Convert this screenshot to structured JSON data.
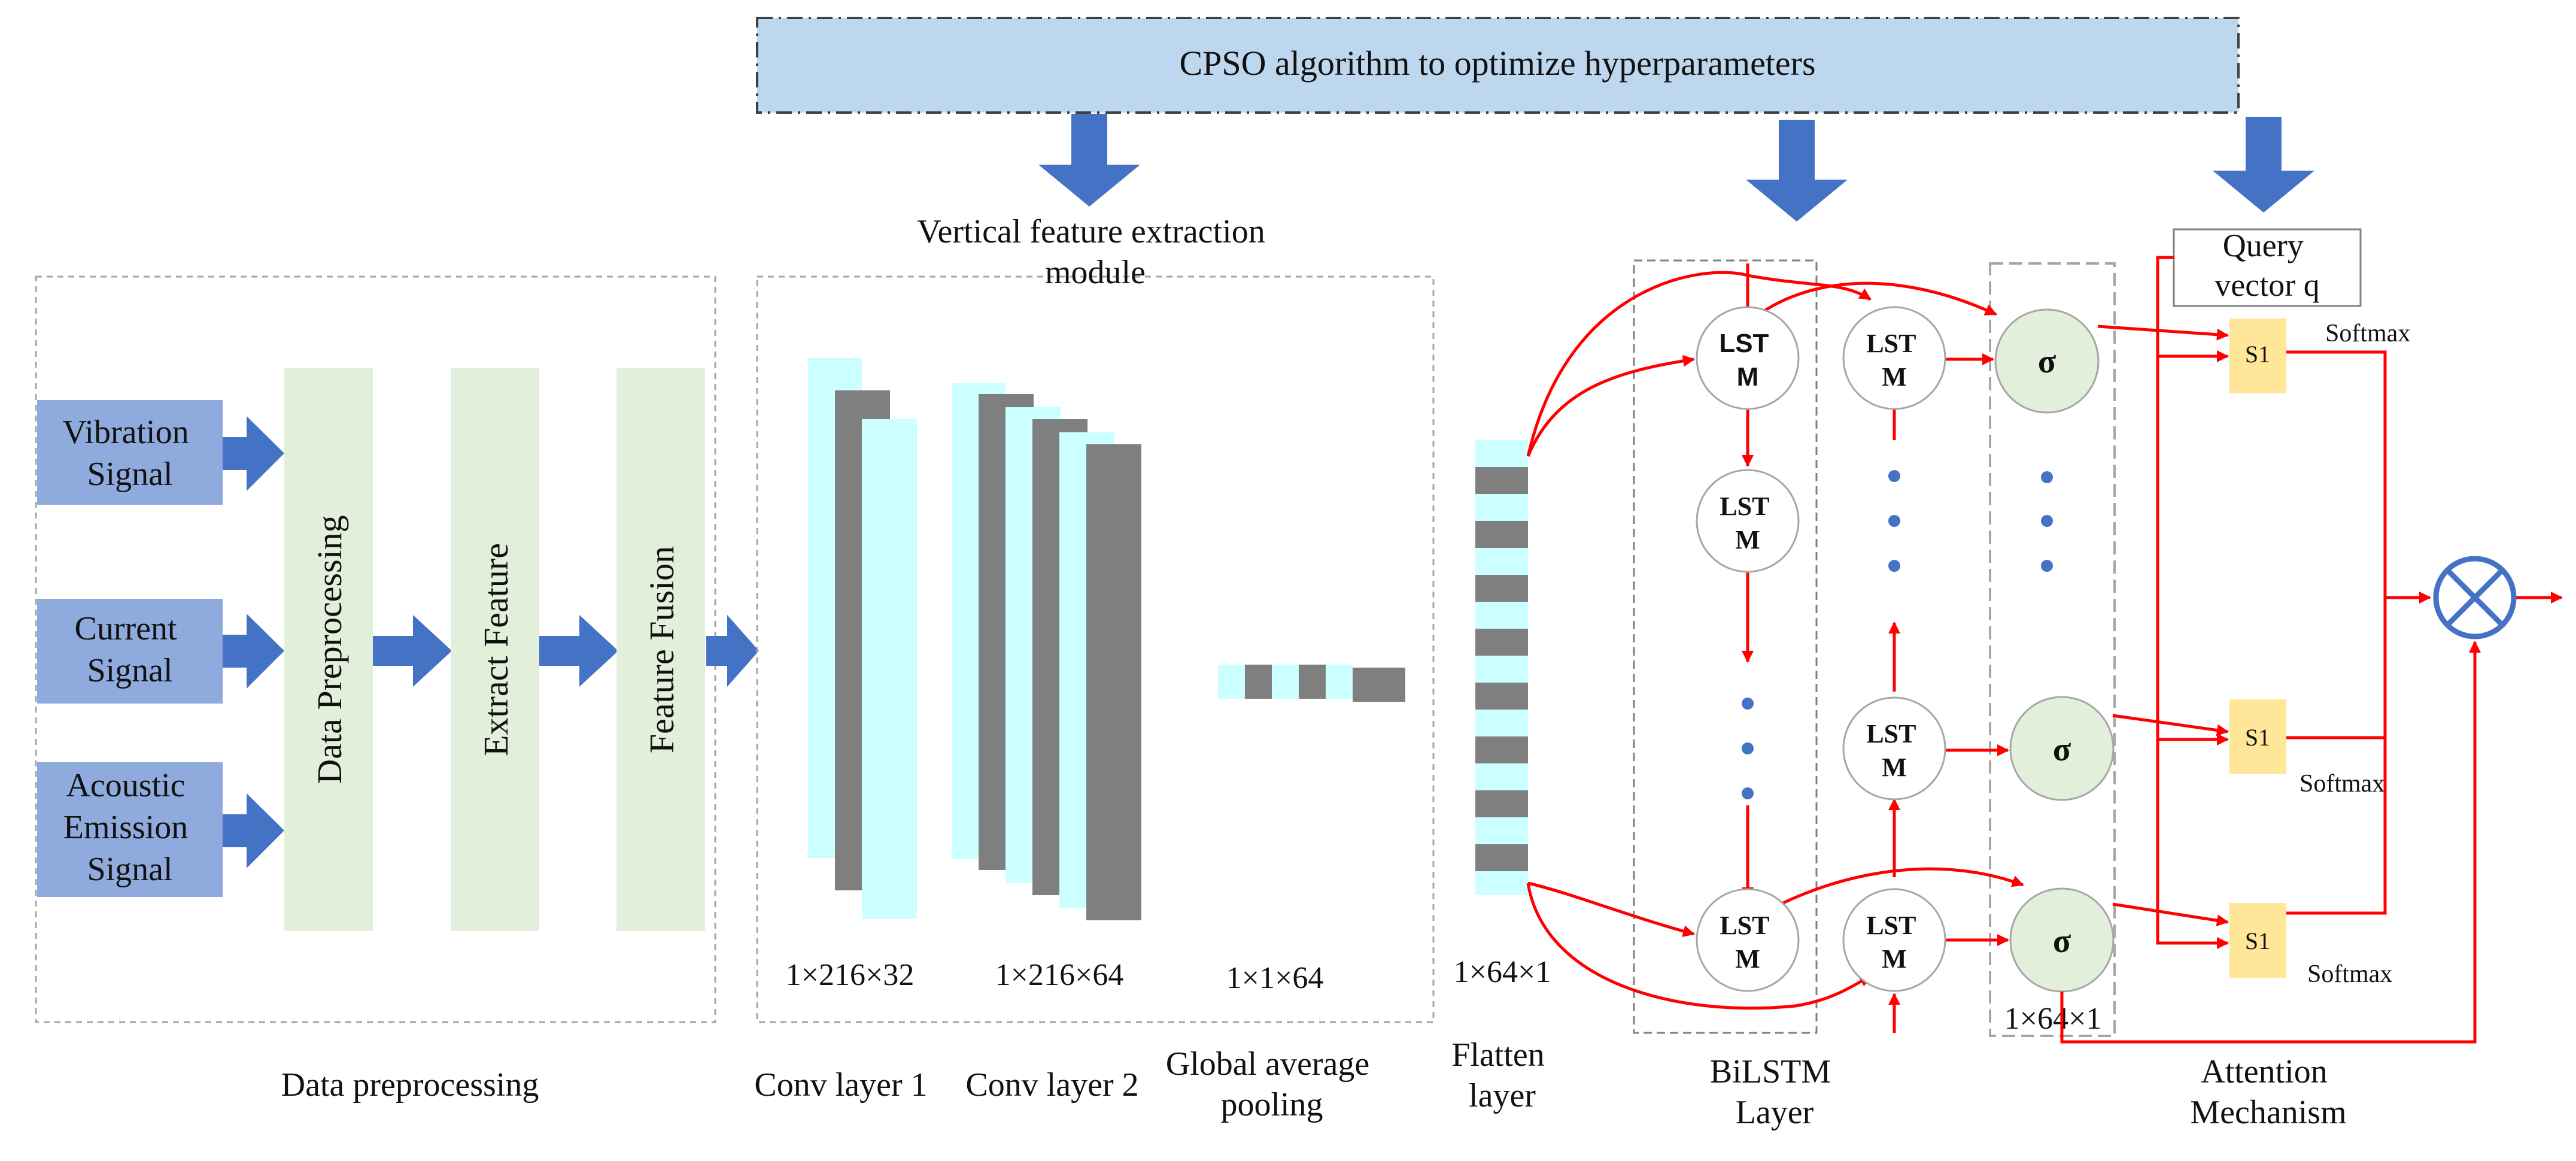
{
  "cpso": {
    "text": "CPSO algorithm to optimize hyperparameters"
  },
  "inputs": {
    "vibration": [
      "Vibration",
      "Signal"
    ],
    "current": [
      "Current",
      "Signal"
    ],
    "acoustic": [
      "Acoustic",
      "Emission",
      "Signal"
    ]
  },
  "preproc": {
    "data_preprocessing": "Data Preprocessing",
    "extract_feature": "Extract Feature",
    "feature_fusion": "Feature Fusion",
    "caption": "Data preprocessing"
  },
  "vertical_module": {
    "lines": [
      "Vertical feature extraction",
      "module"
    ]
  },
  "conv": {
    "conv1_dim": "1×216×32",
    "conv2_dim": "1×216×64",
    "gap_dim": "1×1×64",
    "conv1_caption": "Conv layer 1",
    "conv2_caption": "Conv layer 2",
    "gap_caption": [
      "Global average",
      "pooling"
    ]
  },
  "flatten": {
    "dim": "1×64×1",
    "caption": [
      "Flatten",
      "layer"
    ]
  },
  "bilstm": {
    "cell": [
      "LST",
      "M"
    ],
    "caption": [
      "BiLSTM",
      "Layer"
    ],
    "sigma": "σ",
    "sigma_dim": "1×64×1"
  },
  "attention": {
    "query": [
      "Query",
      "vector q"
    ],
    "s1": "S1",
    "softmax": "Softmax",
    "caption": [
      "Attention",
      "Mechanism"
    ]
  },
  "colors": {
    "cpso_fill": "#bdd7ee",
    "big_arrow": "#4472c4",
    "input_box": "#8faadc",
    "preproc_box": "#e2efda",
    "cyan": "#ccffff",
    "gray": "#7f7f7f",
    "sigma_fill": "#e2efda",
    "s1_fill": "#ffe699",
    "red": "#ff0000",
    "dot": "#4472c4"
  }
}
